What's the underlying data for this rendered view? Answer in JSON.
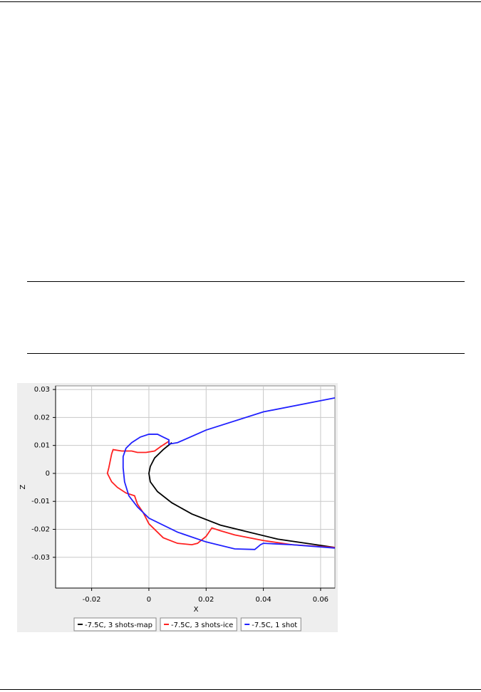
{
  "chart_data": {
    "type": "line",
    "x_label": "X",
    "y_label": "Z",
    "xlim": [
      -0.0326,
      0.065
    ],
    "ylim": [
      -0.041,
      0.0313
    ],
    "xticks": [
      -0.02,
      0,
      0.02,
      0.04,
      0.06
    ],
    "yticks": [
      0.03,
      0.02,
      0.01,
      0,
      -0.01,
      -0.02,
      -0.03
    ],
    "grid": true,
    "series": [
      {
        "name": "-7.5C, 3 shots-map",
        "color": "#000000",
        "x": [
          0.008,
          0.005,
          0.002,
          0.0005,
          0,
          0.0005,
          0.003,
          0.008,
          0.015,
          0.025,
          0.035,
          0.045,
          0.055,
          0.065
        ],
        "values": [
          0.011,
          0.0085,
          0.0055,
          0.0025,
          0,
          -0.003,
          -0.0065,
          -0.0105,
          -0.0145,
          -0.0185,
          -0.021,
          -0.0235,
          -0.025,
          -0.0265
        ]
      },
      {
        "name": "-7.5C, 3 shots-ice",
        "color": "#ff2020",
        "x": [
          0.007,
          0.004,
          0.002,
          -0.001,
          -0.004,
          -0.006,
          -0.0095,
          -0.0125,
          -0.013,
          -0.014,
          -0.0145,
          -0.013,
          -0.011,
          -0.008,
          -0.005,
          -0.004,
          -0.002,
          0,
          0.005,
          0.01,
          0.015,
          0.017,
          0.02,
          0.022,
          0.025,
          0.03,
          0.04,
          0.05,
          0.065
        ],
        "values": [
          0.0115,
          0.0095,
          0.008,
          0.0075,
          0.0075,
          0.008,
          0.008,
          0.0085,
          0.007,
          0.002,
          0,
          -0.003,
          -0.005,
          -0.007,
          -0.008,
          -0.011,
          -0.014,
          -0.018,
          -0.023,
          -0.025,
          -0.0255,
          -0.025,
          -0.0225,
          -0.0195,
          -0.0205,
          -0.022,
          -0.024,
          -0.0255,
          -0.0265
        ]
      },
      {
        "name": "-7.5C, 1 shot",
        "color": "#2020ff",
        "x": [
          0.065,
          0.04,
          0.02,
          0.01,
          0.007,
          0.007,
          0.005,
          0.003,
          0,
          -0.003,
          -0.006,
          -0.008,
          -0.009,
          -0.009,
          -0.0085,
          -0.007,
          -0.004,
          0,
          0.01,
          0.02,
          0.03,
          0.037,
          0.039,
          0.04,
          0.05,
          0.065
        ],
        "values": [
          0.027,
          0.022,
          0.0155,
          0.011,
          0.0105,
          0.012,
          0.013,
          0.014,
          0.014,
          0.013,
          0.011,
          0.009,
          0.006,
          0.002,
          -0.003,
          -0.008,
          -0.012,
          -0.016,
          -0.021,
          -0.0245,
          -0.027,
          -0.0272,
          -0.0255,
          -0.025,
          -0.0255,
          -0.0267
        ]
      }
    ]
  }
}
